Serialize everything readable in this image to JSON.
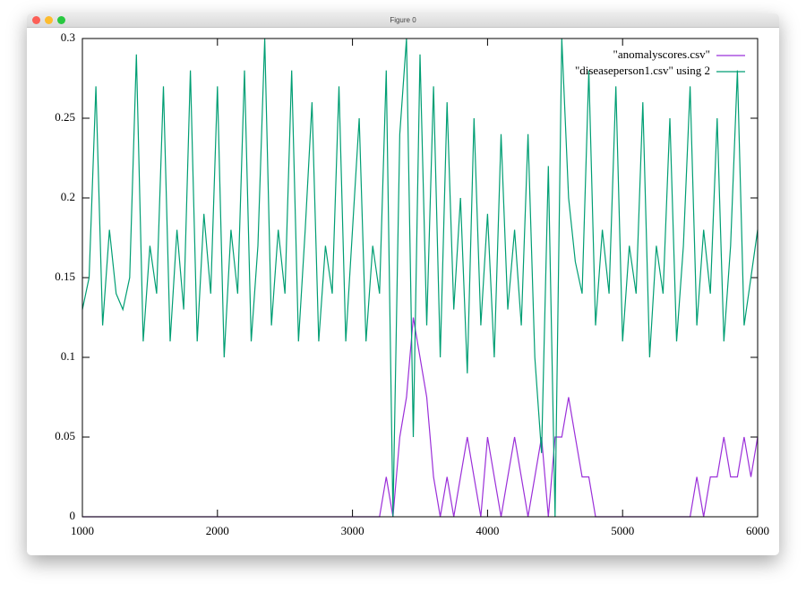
{
  "window": {
    "title": "Figure 0"
  },
  "chart_data": {
    "type": "line",
    "x": [
      1000,
      1050,
      1100,
      1150,
      1200,
      1250,
      1300,
      1350,
      1400,
      1450,
      1500,
      1550,
      1600,
      1650,
      1700,
      1750,
      1800,
      1850,
      1900,
      1950,
      2000,
      2050,
      2100,
      2150,
      2200,
      2250,
      2300,
      2350,
      2400,
      2450,
      2500,
      2550,
      2600,
      2650,
      2700,
      2750,
      2800,
      2850,
      2900,
      2950,
      3000,
      3050,
      3100,
      3150,
      3200,
      3250,
      3300,
      3350,
      3400,
      3450,
      3500,
      3550,
      3600,
      3650,
      3700,
      3750,
      3800,
      3850,
      3900,
      3950,
      4000,
      4050,
      4100,
      4150,
      4200,
      4250,
      4300,
      4350,
      4400,
      4450,
      4500,
      4550,
      4600,
      4650,
      4700,
      4750,
      4800,
      4850,
      4900,
      4950,
      5000,
      5050,
      5100,
      5150,
      5200,
      5250,
      5300,
      5350,
      5400,
      5450,
      5500,
      5550,
      5600,
      5650,
      5700,
      5750,
      5800,
      5850,
      5900,
      5950,
      6000
    ],
    "series": [
      {
        "name": "\"anomalyscores.csv\"",
        "color": "#9b30d9",
        "values": [
          0,
          0,
          0,
          0,
          0,
          0,
          0,
          0,
          0,
          0,
          0,
          0,
          0,
          0,
          0,
          0,
          0,
          0,
          0,
          0,
          0,
          0,
          0,
          0,
          0,
          0,
          0,
          0,
          0,
          0,
          0,
          0,
          0,
          0,
          0,
          0,
          0,
          0,
          0,
          0,
          0,
          0,
          0,
          0,
          0,
          0.025,
          0,
          0.05,
          0.075,
          0.125,
          0.1,
          0.075,
          0.025,
          0,
          0.025,
          0,
          0.025,
          0.05,
          0.025,
          0,
          0.05,
          0.025,
          0,
          0.025,
          0.05,
          0.025,
          0,
          0.025,
          0.05,
          0,
          0.05,
          0.05,
          0.075,
          0.05,
          0.025,
          0.025,
          0,
          0,
          0,
          0,
          0,
          0,
          0,
          0,
          0,
          0,
          0,
          0,
          0,
          0,
          0,
          0.025,
          0,
          0.025,
          0.025,
          0.05,
          0.025,
          0.025,
          0.05,
          0.025,
          0.05
        ]
      },
      {
        "name": "\"diseaseperson1.csv\" using 2",
        "color": "#009e73",
        "values": [
          0.13,
          0.15,
          0.27,
          0.12,
          0.18,
          0.14,
          0.13,
          0.15,
          0.29,
          0.11,
          0.17,
          0.14,
          0.27,
          0.11,
          0.18,
          0.13,
          0.28,
          0.11,
          0.19,
          0.14,
          0.27,
          0.1,
          0.18,
          0.14,
          0.28,
          0.11,
          0.17,
          0.3,
          0.12,
          0.18,
          0.14,
          0.28,
          0.11,
          0.18,
          0.26,
          0.11,
          0.17,
          0.14,
          0.27,
          0.11,
          0.18,
          0.25,
          0.11,
          0.17,
          0.14,
          0.28,
          0.0,
          0.24,
          0.3,
          0.05,
          0.29,
          0.12,
          0.27,
          0.1,
          0.26,
          0.13,
          0.2,
          0.09,
          0.25,
          0.12,
          0.19,
          0.1,
          0.24,
          0.13,
          0.18,
          0.12,
          0.24,
          0.1,
          0.04,
          0.22,
          0.0,
          0.3,
          0.2,
          0.16,
          0.14,
          0.28,
          0.12,
          0.18,
          0.14,
          0.27,
          0.11,
          0.17,
          0.14,
          0.26,
          0.1,
          0.17,
          0.14,
          0.25,
          0.11,
          0.17,
          0.27,
          0.12,
          0.18,
          0.14,
          0.25,
          0.11,
          0.17,
          0.28,
          0.12,
          0.15,
          0.18
        ]
      }
    ],
    "xlim": [
      1000,
      6000
    ],
    "xticks": [
      1000,
      2000,
      3000,
      4000,
      5000,
      6000
    ],
    "ylim": [
      0,
      0.3
    ],
    "yticks": [
      0,
      0.05,
      0.1,
      0.15,
      0.2,
      0.25,
      0.3
    ],
    "grid": false,
    "legend": "top-right"
  }
}
